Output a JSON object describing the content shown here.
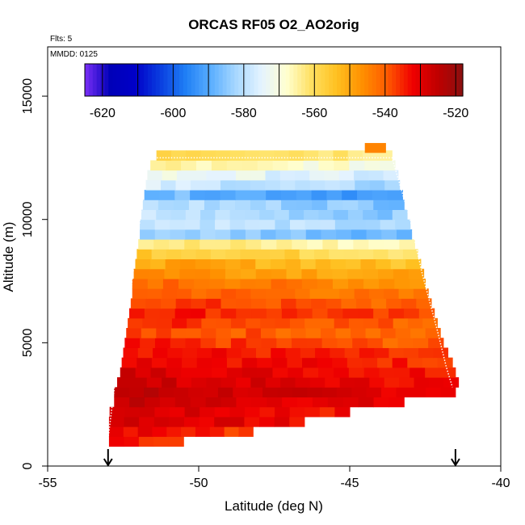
{
  "chart_data": {
    "type": "heatmap",
    "title": "ORCAS RF05 O2_AO2orig",
    "xlabel": "Latitude (deg N)",
    "ylabel": "Altitude (m)",
    "xlim": [
      -55,
      -40
    ],
    "ylim": [
      0,
      17000
    ],
    "xticks": [
      -55,
      -50,
      -45,
      -40
    ],
    "yticks": [
      0,
      5000,
      10000,
      15000
    ],
    "flights_label": "Flts: 5",
    "date_label": "MMDD: 0125",
    "colorbar": {
      "range": [
        -625,
        -518
      ],
      "ticks": [
        -620,
        -600,
        -580,
        -560,
        -540,
        -520
      ],
      "colors": [
        "#7b2ff7",
        "#0000b8",
        "#0000c8",
        "#0a3ee0",
        "#1f7ff5",
        "#5aaeff",
        "#a8d8ff",
        "#e4f3ff",
        "#ffffd0",
        "#ffe060",
        "#ffc020",
        "#ff9000",
        "#ff5a00",
        "#f00000",
        "#c00000",
        "#8a1010"
      ]
    },
    "profile": {
      "rows": [
        {
          "alt": 1000,
          "lat_min": -52.97,
          "lat_max": -50.5,
          "value": -535
        },
        {
          "alt": 1400,
          "lat_min": -52.97,
          "lat_max": -48.2,
          "value": -534
        },
        {
          "alt": 1800,
          "lat_min": -52.97,
          "lat_max": -46.5,
          "value": -530
        },
        {
          "alt": 2200,
          "lat_min": -52.95,
          "lat_max": -45.0,
          "value": -531
        },
        {
          "alt": 2600,
          "lat_min": -52.8,
          "lat_max": -43.2,
          "value": -529
        },
        {
          "alt": 3000,
          "lat_min": -52.8,
          "lat_max": -41.5,
          "value": -528
        },
        {
          "alt": 3400,
          "lat_min": -52.7,
          "lat_max": -41.4,
          "value": -530
        },
        {
          "alt": 3800,
          "lat_min": -52.6,
          "lat_max": -41.5,
          "value": -531
        },
        {
          "alt": 4200,
          "lat_min": -52.55,
          "lat_max": -41.6,
          "value": -533
        },
        {
          "alt": 4600,
          "lat_min": -52.5,
          "lat_max": -41.75,
          "value": -535
        },
        {
          "alt": 5000,
          "lat_min": -52.45,
          "lat_max": -41.9,
          "value": -538
        },
        {
          "alt": 5400,
          "lat_min": -52.4,
          "lat_max": -42.0,
          "value": -540
        },
        {
          "alt": 5800,
          "lat_min": -52.35,
          "lat_max": -42.1,
          "value": -538
        },
        {
          "alt": 6200,
          "lat_min": -52.3,
          "lat_max": -42.2,
          "value": -536
        },
        {
          "alt": 6600,
          "lat_min": -52.25,
          "lat_max": -42.3,
          "value": -539
        },
        {
          "alt": 7000,
          "lat_min": -52.2,
          "lat_max": -42.4,
          "value": -542
        },
        {
          "alt": 7400,
          "lat_min": -52.2,
          "lat_max": -42.5,
          "value": -544
        },
        {
          "alt": 7800,
          "lat_min": -52.15,
          "lat_max": -42.55,
          "value": -548
        },
        {
          "alt": 8200,
          "lat_min": -52.1,
          "lat_max": -42.65,
          "value": -552
        },
        {
          "alt": 8600,
          "lat_min": -52.05,
          "lat_max": -42.75,
          "value": -558
        },
        {
          "alt": 9000,
          "lat_min": -52.0,
          "lat_max": -42.85,
          "value": -565
        },
        {
          "alt": 9400,
          "lat_min": -51.95,
          "lat_max": -42.95,
          "value": -585
        },
        {
          "alt": 9800,
          "lat_min": -51.95,
          "lat_max": -43.0,
          "value": -580
        },
        {
          "alt": 10200,
          "lat_min": -51.9,
          "lat_max": -43.1,
          "value": -582
        },
        {
          "alt": 10600,
          "lat_min": -51.85,
          "lat_max": -43.2,
          "value": -583
        },
        {
          "alt": 11000,
          "lat_min": -51.8,
          "lat_max": -43.25,
          "value": -590
        },
        {
          "alt": 11400,
          "lat_min": -51.75,
          "lat_max": -43.35,
          "value": -580
        },
        {
          "alt": 11800,
          "lat_min": -51.7,
          "lat_max": -43.4,
          "value": -575
        },
        {
          "alt": 12200,
          "lat_min": -51.6,
          "lat_max": -43.5,
          "value": -568
        },
        {
          "alt": 12600,
          "lat_min": -51.4,
          "lat_max": -43.6,
          "value": -560
        }
      ],
      "top_patch": {
        "alt": 12900,
        "lat_min": -44.5,
        "lat_max": -43.8,
        "value": -545
      },
      "outline": [
        [
          -53.0,
          1100
        ],
        [
          -52.75,
          3600
        ],
        [
          -52.3,
          6500
        ],
        [
          -52.2,
          7600
        ],
        [
          -52.05,
          9000
        ],
        [
          -51.9,
          10400
        ],
        [
          -51.75,
          12000
        ],
        [
          -51.6,
          12500
        ],
        [
          -43.6,
          12500
        ],
        [
          -43.0,
          10000
        ],
        [
          -42.6,
          7800
        ],
        [
          -42.1,
          5500
        ],
        [
          -41.8,
          4000
        ],
        [
          -41.6,
          3200
        ]
      ]
    },
    "arrows_at_lat": [
      -53.0,
      -41.5
    ]
  }
}
